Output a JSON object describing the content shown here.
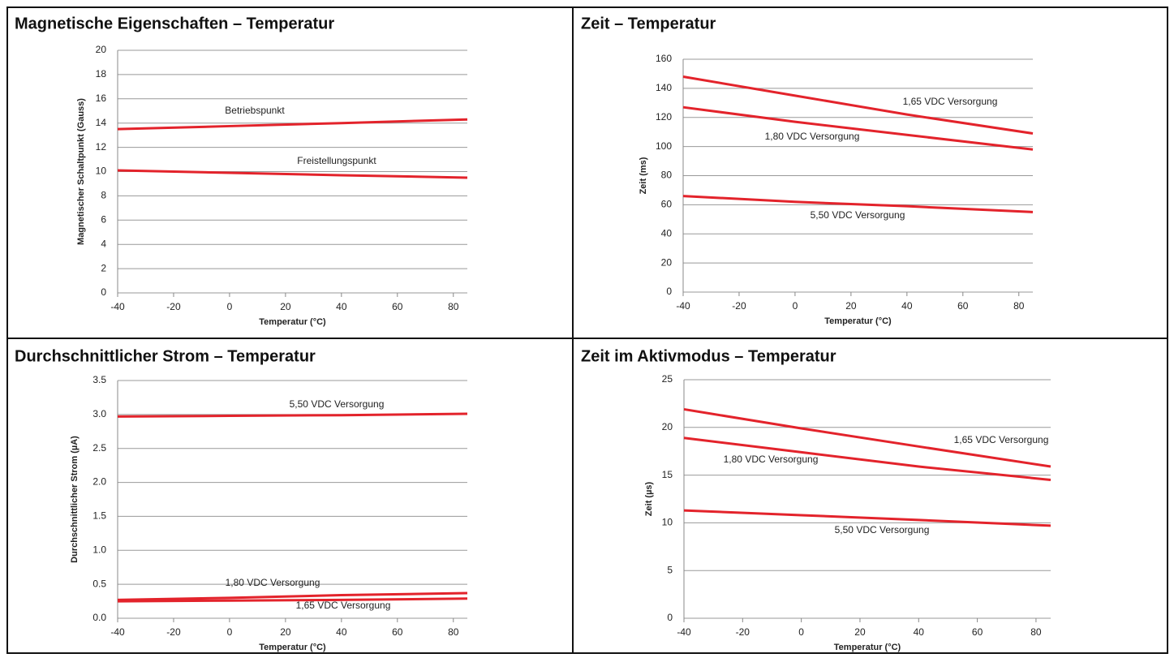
{
  "chart_data": [
    {
      "type": "line",
      "title": "Magnetische Eigenschaften – Temperatur",
      "x_label": "Temperatur (°C)",
      "y_label": "Magnetischer Schaltpunkt (Gauss)",
      "x": [
        -40,
        0,
        40,
        85
      ],
      "xlim": [
        -40,
        85
      ],
      "xticks": [
        -40,
        -20,
        0,
        20,
        40,
        60,
        80
      ],
      "ylim": [
        0,
        20
      ],
      "yticks": [
        0,
        2,
        4,
        6,
        8,
        10,
        12,
        14,
        16,
        18,
        20
      ],
      "grid": true,
      "series": [
        {
          "name": "Betriebspunkt",
          "color": "#e3232b",
          "values": [
            13.5,
            13.75,
            14.0,
            14.3
          ]
        },
        {
          "name": "Freistellungspunkt",
          "color": "#e3232b",
          "values": [
            10.1,
            9.9,
            9.7,
            9.5
          ]
        }
      ]
    },
    {
      "type": "line",
      "title": "Zeit – Temperatur",
      "x_label": "Temperatur (°C)",
      "y_label": "Zeit (ms)",
      "x": [
        -40,
        0,
        40,
        85
      ],
      "xlim": [
        -40,
        85
      ],
      "xticks": [
        -40,
        -20,
        0,
        20,
        40,
        60,
        80
      ],
      "ylim": [
        0,
        160
      ],
      "yticks": [
        0,
        20,
        40,
        60,
        80,
        100,
        120,
        140,
        160
      ],
      "grid": true,
      "series": [
        {
          "name": "1,65 VDC Versorgung",
          "color": "#e3232b",
          "values": [
            148,
            135,
            122,
            109
          ]
        },
        {
          "name": "1,80 VDC Versorgung",
          "color": "#e3232b",
          "values": [
            127,
            117,
            108,
            98
          ]
        },
        {
          "name": "5,50 VDC Versorgung",
          "color": "#e3232b",
          "values": [
            66,
            62,
            59,
            55
          ]
        }
      ]
    },
    {
      "type": "line",
      "title": "Durchschnittlicher Strom – Temperatur",
      "x_label": "Temperatur (°C)",
      "y_label": "Durchschnittlicher Strom (µA)",
      "x": [
        -40,
        0,
        40,
        85
      ],
      "xlim": [
        -40,
        85
      ],
      "xticks": [
        -40,
        -20,
        0,
        20,
        40,
        60,
        80
      ],
      "ylim": [
        0,
        3.5
      ],
      "yticks": [
        {
          "value": 0,
          "label": "0.0"
        },
        0.5,
        {
          "value": 1,
          "label": "1.0"
        },
        1.5,
        {
          "value": 2,
          "label": "2.0"
        },
        2.5,
        {
          "value": 3,
          "label": "3.0"
        },
        3.5
      ],
      "grid": true,
      "series": [
        {
          "name": "5,50 VDC Versorgung",
          "color": "#e3232b",
          "values": [
            2.97,
            2.98,
            2.99,
            3.01
          ]
        },
        {
          "name": "1,80 VDC Versorgung",
          "color": "#e3232b",
          "values": [
            0.27,
            0.3,
            0.34,
            0.37
          ]
        },
        {
          "name": "1,65 VDC Versorgung",
          "color": "#e3232b",
          "values": [
            0.25,
            0.26,
            0.27,
            0.29
          ]
        }
      ]
    },
    {
      "type": "line",
      "title": "Zeit im Aktivmodus – Temperatur",
      "x_label": "Temperatur (°C)",
      "y_label": "Zeit (µs)",
      "x": [
        -40,
        0,
        40,
        85
      ],
      "xlim": [
        -40,
        85
      ],
      "xticks": [
        -40,
        -20,
        0,
        20,
        40,
        60,
        80
      ],
      "ylim": [
        0,
        25
      ],
      "yticks": [
        0,
        5,
        10,
        15,
        20,
        25
      ],
      "grid": true,
      "series": [
        {
          "name": "1,65 VDC Versorgung",
          "color": "#e3232b",
          "values": [
            21.9,
            19.9,
            18.0,
            15.9
          ]
        },
        {
          "name": "1,80 VDC Versorgung",
          "color": "#e3232b",
          "values": [
            18.9,
            17.4,
            15.9,
            14.5
          ]
        },
        {
          "name": "5,50 VDC Versorgung",
          "color": "#e3232b",
          "values": [
            11.3,
            10.8,
            10.3,
            9.7
          ]
        }
      ]
    }
  ]
}
